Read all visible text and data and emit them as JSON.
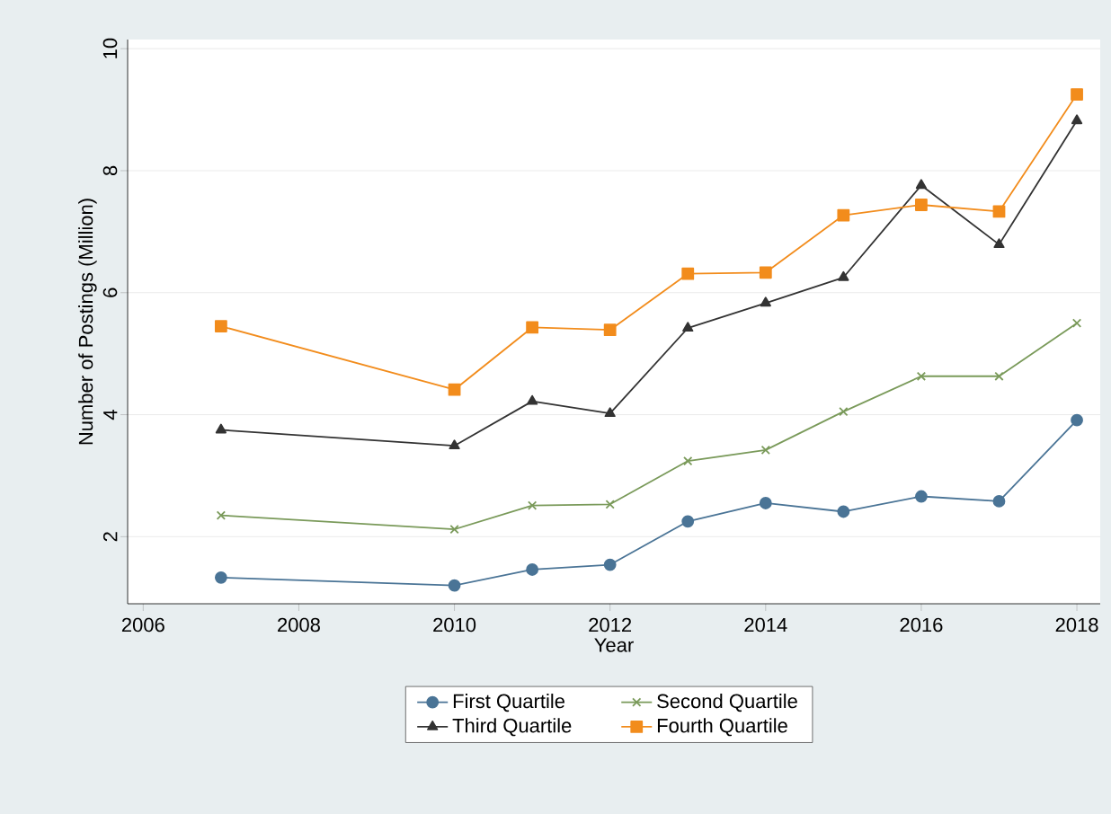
{
  "chart_data": {
    "type": "line",
    "xlabel": "Year",
    "ylabel": "Number of Postings (Million)",
    "x": [
      2007,
      2010,
      2011,
      2012,
      2013,
      2014,
      2015,
      2016,
      2017,
      2018
    ],
    "series": [
      {
        "name": "First Quartile",
        "color": "#4a7496",
        "marker": "circle",
        "values": [
          1.33,
          1.2,
          1.46,
          1.54,
          2.25,
          2.55,
          2.41,
          2.66,
          2.58,
          3.91
        ]
      },
      {
        "name": "Second Quartile",
        "color": "#7a9a5a",
        "marker": "cross",
        "values": [
          2.35,
          2.12,
          2.51,
          2.53,
          3.24,
          3.42,
          4.05,
          4.63,
          4.63,
          5.5
        ]
      },
      {
        "name": "Third Quartile",
        "color": "#333333",
        "marker": "triangle",
        "values": [
          3.75,
          3.49,
          4.22,
          4.02,
          5.42,
          5.83,
          6.25,
          7.76,
          6.79,
          8.82
        ]
      },
      {
        "name": "Fourth Quartile",
        "color": "#f28c1c",
        "marker": "square",
        "values": [
          5.45,
          4.41,
          5.43,
          5.39,
          6.31,
          6.33,
          7.27,
          7.44,
          7.33,
          9.25
        ]
      }
    ],
    "xlim": [
      2005.8,
      2018.3
    ],
    "ylim": [
      0.9,
      10.15
    ],
    "xticks": [
      2006,
      2008,
      2010,
      2012,
      2014,
      2016,
      2018
    ],
    "yticks": [
      2,
      4,
      6,
      8,
      10
    ],
    "grid": "y",
    "legend": "bottom",
    "line_style": "solid"
  }
}
